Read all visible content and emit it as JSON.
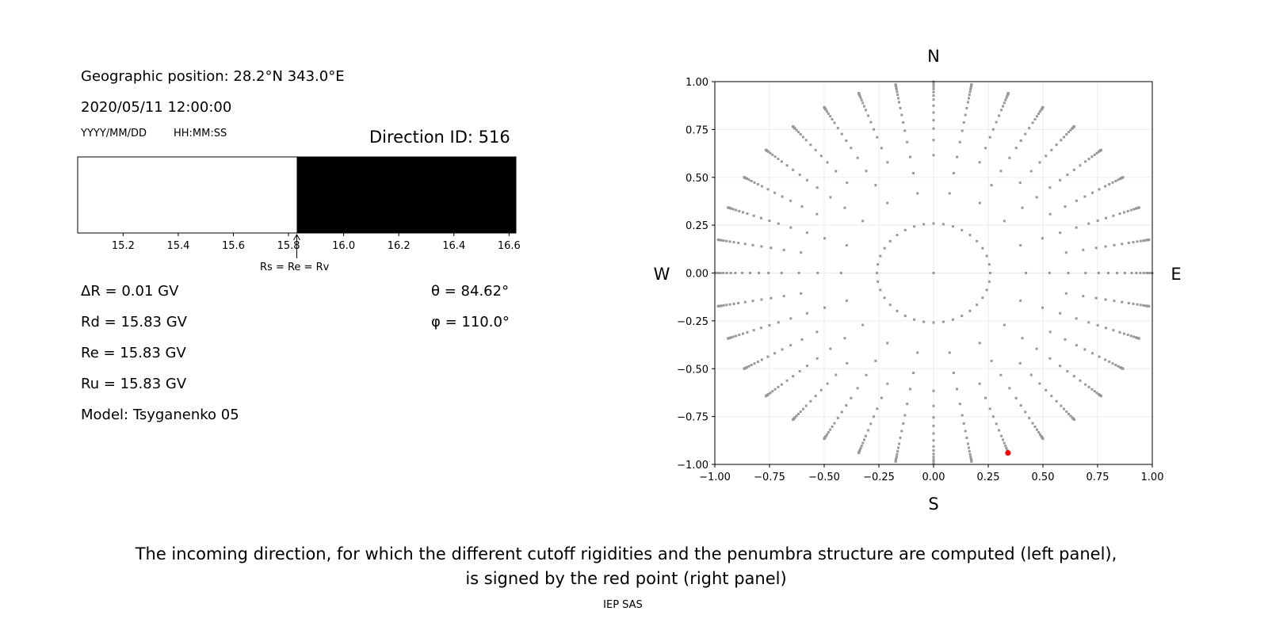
{
  "left_panel": {
    "position_label": "Geographic position: 28.2°N 343.0°E",
    "datetime": "2020/05/11 12:00:00",
    "date_format": "YYYY/MM/DD",
    "time_format": "HH:MM:SS",
    "direction_id": "Direction ID: 516",
    "marker_label": "Rs = Re = Rv",
    "delta_r": "ΔR = 0.01 GV",
    "rd": "Rd = 15.83 GV",
    "re": "Re = 15.83 GV",
    "ru": "Ru = 15.83 GV",
    "model": "Model: Tsyganenko 05",
    "theta": "θ = 84.62°",
    "phi": "φ = 110.0°"
  },
  "chart_data": [
    {
      "type": "bar",
      "subtype": "penumbra",
      "xlim": [
        15.035,
        16.625
      ],
      "xticks": [
        "15.2",
        "15.4",
        "15.6",
        "15.8",
        "16.0",
        "16.2",
        "16.4",
        "16.6"
      ],
      "segments": [
        {
          "from": 15.035,
          "to": 15.83,
          "color": "#ffffff",
          "meaning": "allowed"
        },
        {
          "from": 15.83,
          "to": 16.625,
          "color": "#000000",
          "meaning": "forbidden"
        }
      ],
      "marker_value": 15.83
    },
    {
      "type": "scatter",
      "xlim": [
        -1,
        1
      ],
      "ylim": [
        -1,
        1
      ],
      "xticks": [
        "−1.00",
        "−0.75",
        "−0.50",
        "−0.25",
        "0.00",
        "0.25",
        "0.50",
        "0.75",
        "1.00"
      ],
      "yticks": [
        "−1.00",
        "−0.75",
        "−0.50",
        "−0.25",
        "0.00",
        "0.25",
        "0.50",
        "0.75",
        "1.00"
      ],
      "grid": true,
      "compass": {
        "n": "N",
        "s": "S",
        "e": "E",
        "w": "W"
      },
      "grid_points": {
        "color": "#999999",
        "zenith_angles_deg": [
          0,
          15,
          25,
          32,
          38,
          44,
          49,
          53,
          57,
          61,
          65,
          68,
          71,
          74,
          77,
          80,
          82,
          84,
          86,
          88,
          90
        ],
        "azimuth_step_deg": 10,
        "inner_ring_azimuth_step_deg": 10
      },
      "selected_point": {
        "x": 0.34,
        "y": -0.94,
        "color": "#ff0000"
      }
    }
  ],
  "caption": {
    "line1": "The incoming direction, for which the different cutoff rigidities and the penumbra structure are computed (left panel),",
    "line2": "is signed by the red point (right panel)",
    "credit": "IEP SAS"
  }
}
